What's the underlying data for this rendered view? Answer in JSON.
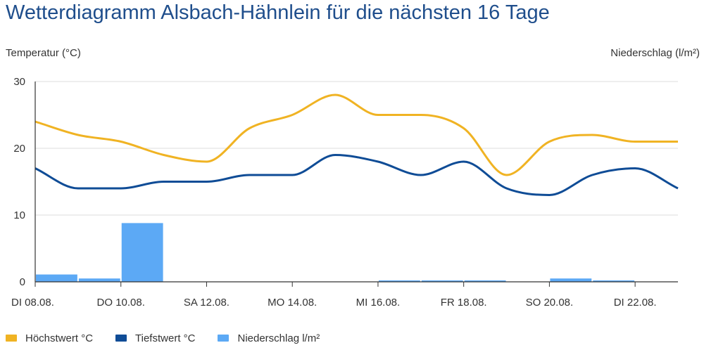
{
  "title": "Wetterdiagramm Alsbach-Hähnlein für die nächsten 16 Tage",
  "colors": {
    "max_temp": "#f0b323",
    "min_temp": "#0f4c96",
    "precip": "#5ca9f5",
    "grid": "#dddddd",
    "axis": "#333333"
  },
  "legend": [
    {
      "label": "Höchstwert °C",
      "color": "#f0b323"
    },
    {
      "label": "Tiefstwert °C",
      "color": "#0f4c96"
    },
    {
      "label": "Niederschlag l/m²",
      "color": "#5ca9f5"
    }
  ],
  "chart_data": {
    "type": "line",
    "title": "Wetterdiagramm Alsbach-Hähnlein für die nächsten 16 Tage",
    "ylabel": "Temperatur (°C)",
    "y2label": "Niederschlag (l/m²)",
    "ylim": [
      0,
      30
    ],
    "yticks": [
      0,
      10,
      20,
      30
    ],
    "grid": true,
    "legend_position": "bottom-left",
    "x_tick_labels": [
      "DI 08.08.",
      "DO 10.08.",
      "SA 12.08.",
      "MO 14.08.",
      "MI 16.08.",
      "FR 18.08.",
      "SO 20.08.",
      "DI 22.08."
    ],
    "series": [
      {
        "name": "Höchstwert °C",
        "type": "line",
        "values": [
          24,
          22,
          21,
          19,
          18,
          23,
          25,
          28,
          25,
          25,
          23,
          16,
          21,
          22,
          21,
          21
        ]
      },
      {
        "name": "Tiefstwert °C",
        "type": "line",
        "values": [
          17,
          14,
          14,
          15,
          15,
          16,
          16,
          19,
          18,
          16,
          18,
          14,
          13,
          16,
          17,
          14
        ]
      },
      {
        "name": "Niederschlag l/m²",
        "type": "bar",
        "values": [
          null,
          1.1,
          0.5,
          8.8,
          null,
          null,
          null,
          null,
          null,
          0.2,
          0.2,
          0.2,
          null,
          0.5,
          0.2,
          null
        ]
      }
    ]
  }
}
